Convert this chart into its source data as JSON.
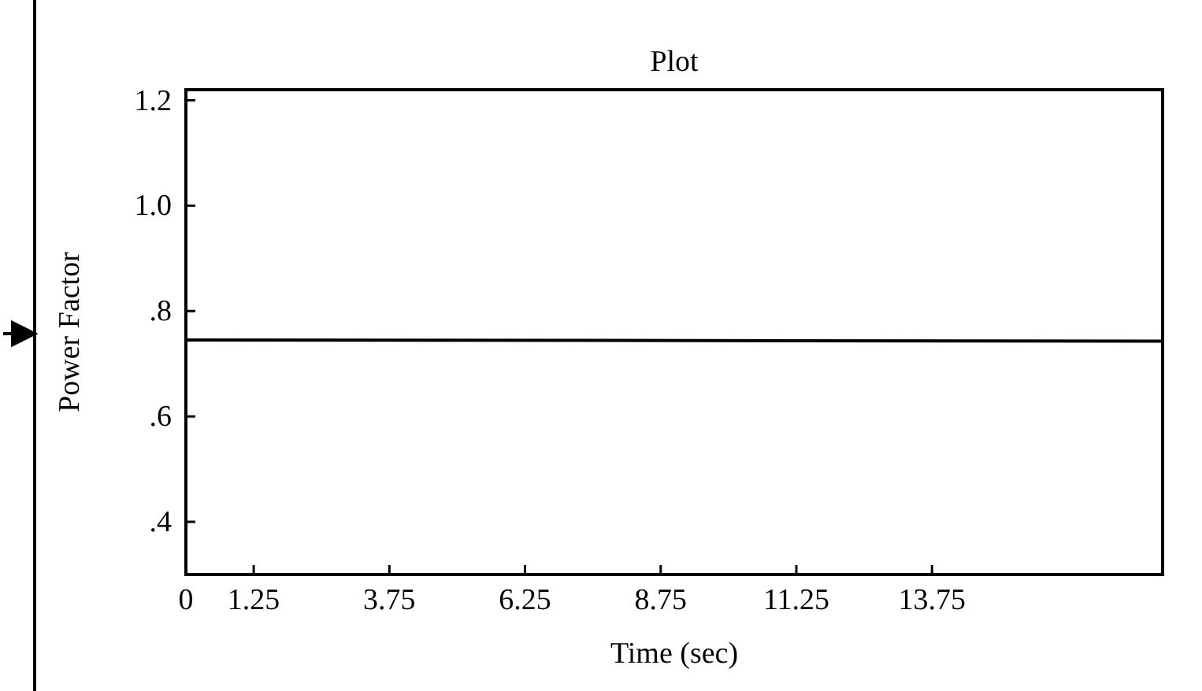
{
  "chart_data": {
    "type": "line",
    "title": "Plot",
    "xlabel": "Time (sec)",
    "ylabel": "Power Factor",
    "x": [
      0,
      18
    ],
    "series": [
      {
        "color": "#000000",
        "values": [
          0.745,
          0.743
        ]
      }
    ],
    "xlim": [
      0,
      18
    ],
    "xticks": [
      0,
      1.25,
      3.75,
      6.25,
      8.75,
      11.25,
      13.75
    ],
    "ylim": [
      0.3,
      1.22
    ],
    "yticks": [
      {
        "value": 0.4,
        "label": ".4"
      },
      {
        "value": 0.6,
        "label": ".6"
      },
      {
        "value": 0.8,
        "label": ".8"
      },
      {
        "value": 1.0,
        "label": "1.0"
      },
      {
        "value": 1.2,
        "label": "1.2"
      }
    ],
    "grid": false,
    "marker": "none",
    "line_style": "solid"
  }
}
